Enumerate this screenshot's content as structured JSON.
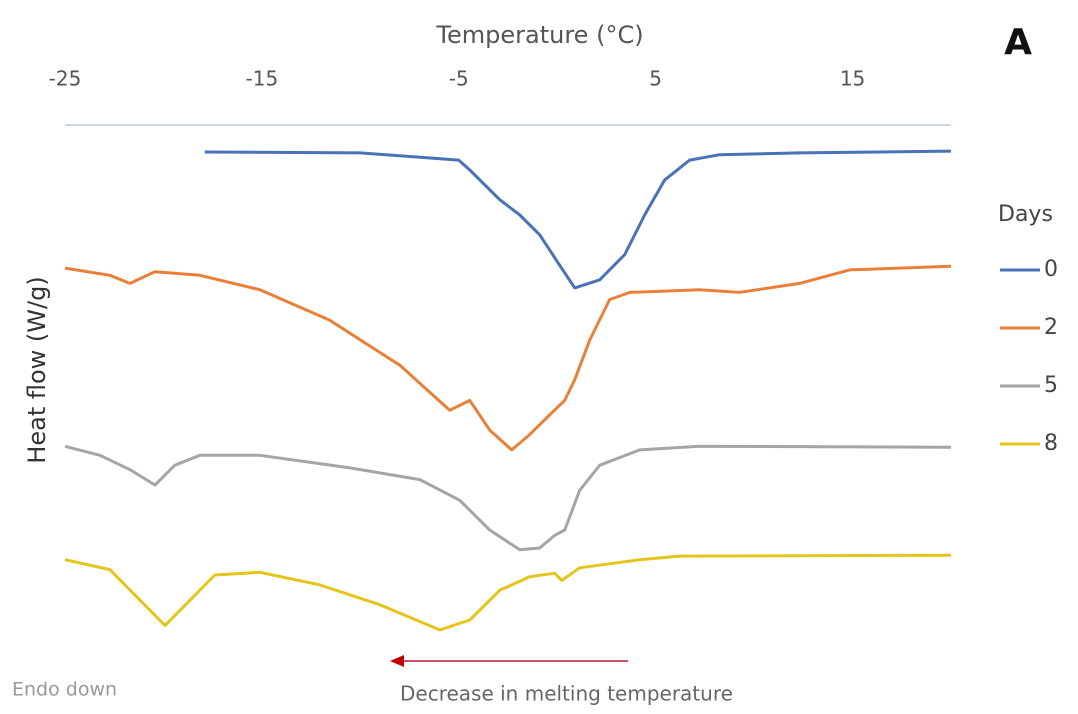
{
  "chart_data": {
    "type": "line",
    "x_label": "Temperature (°C)",
    "y_label": "Heat flow (W/g)",
    "panel_label": "A",
    "legend_title": "Days",
    "annotations": [
      "Endo down",
      "Decrease in melting temperature"
    ],
    "xlim": [
      -25,
      20
    ],
    "xticks": [
      -25,
      -15,
      -5,
      5,
      15
    ],
    "ylim": [
      0,
      6
    ],
    "series": [
      {
        "name": "0",
        "color": "#4a72b8",
        "x": [
          -17.9,
          -10,
          -5,
          -4.44,
          -2.92,
          -1.9,
          -0.89,
          0.13,
          0.89,
          2.16,
          3.43,
          4.44,
          5.46,
          6.73,
          8.25,
          12.31,
          20
        ],
        "values": [
          5.7,
          5.69,
          5.61,
          5.5,
          5.17,
          5.0,
          4.78,
          4.44,
          4.19,
          4.28,
          4.56,
          5.0,
          5.39,
          5.61,
          5.67,
          5.69,
          5.71
        ]
      },
      {
        "name": "2",
        "color": "#e8803a",
        "x": [
          -25,
          -22.72,
          -21.7,
          -20.43,
          -18.15,
          -15.1,
          -11.55,
          -7.99,
          -5.46,
          -4.44,
          -3.43,
          -2.31,
          -1.4,
          -0.38,
          0.38,
          0.89,
          1.65,
          2.66,
          3.68,
          7.23,
          9.26,
          12.31,
          14.85,
          20
        ],
        "values": [
          4.41,
          4.33,
          4.24,
          4.37,
          4.33,
          4.17,
          3.83,
          3.33,
          2.83,
          2.94,
          2.61,
          2.39,
          2.56,
          2.78,
          2.94,
          3.17,
          3.61,
          4.06,
          4.14,
          4.17,
          4.14,
          4.24,
          4.39,
          4.43
        ]
      },
      {
        "name": "5",
        "color": "#a5a5a5",
        "x": [
          -25,
          -23.22,
          -21.7,
          -20.43,
          -19.42,
          -18.15,
          -15.1,
          -10.53,
          -6.98,
          -4.95,
          -3.43,
          -1.9,
          -0.89,
          -0.13,
          0.38,
          1.14,
          2.16,
          4.19,
          7.23,
          20
        ],
        "values": [
          2.43,
          2.33,
          2.17,
          2.0,
          2.22,
          2.33,
          2.33,
          2.19,
          2.06,
          1.83,
          1.5,
          1.28,
          1.3,
          1.44,
          1.5,
          1.94,
          2.22,
          2.39,
          2.43,
          2.42
        ]
      },
      {
        "name": "8",
        "color": "#e3c51c",
        "x": [
          -25,
          -22.72,
          -21.19,
          -19.92,
          -18.65,
          -17.39,
          -15.1,
          -12.06,
          -9.01,
          -5.96,
          -4.44,
          -2.92,
          -1.4,
          -0.13,
          0.23,
          1.14,
          4.19,
          6.22,
          20
        ],
        "values": [
          1.17,
          1.06,
          0.72,
          0.44,
          0.72,
          1.0,
          1.03,
          0.89,
          0.67,
          0.39,
          0.5,
          0.83,
          0.98,
          1.02,
          0.94,
          1.08,
          1.17,
          1.21,
          1.22
        ]
      }
    ]
  }
}
